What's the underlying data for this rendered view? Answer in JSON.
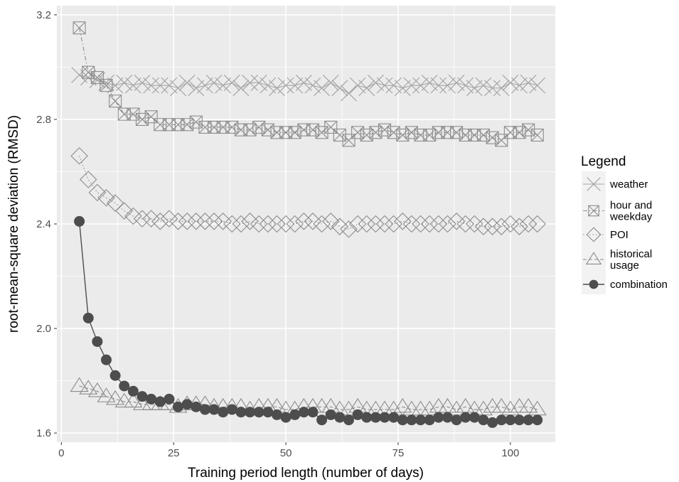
{
  "chart_data": {
    "type": "line",
    "xlabel": "Training period length (number of days)",
    "ylabel": "root-mean-square deviation (RMSD)",
    "xlim": [
      -1,
      110
    ],
    "ylim": [
      1.565,
      3.235
    ],
    "xticks": [
      0,
      25,
      50,
      75,
      100
    ],
    "yticks": [
      1.6,
      2.0,
      2.4,
      2.8,
      3.2
    ],
    "ytick_labels": [
      "1.6",
      "2.0",
      "2.4",
      "2.8",
      "3.2"
    ],
    "grid": true,
    "legend": {
      "title": "Legend",
      "placement": "right"
    },
    "x": [
      4,
      6,
      8,
      10,
      12,
      14,
      16,
      18,
      20,
      22,
      24,
      26,
      28,
      30,
      32,
      34,
      36,
      38,
      40,
      42,
      44,
      46,
      48,
      50,
      52,
      54,
      56,
      58,
      60,
      62,
      64,
      66,
      68,
      70,
      72,
      74,
      76,
      78,
      80,
      82,
      84,
      86,
      88,
      90,
      92,
      94,
      96,
      98,
      100,
      102,
      104,
      106
    ],
    "series": [
      {
        "name": "weather",
        "marker": "cross",
        "line": "solid",
        "color": "#a6a6a6",
        "values": [
          2.97,
          2.96,
          2.95,
          2.94,
          2.93,
          2.94,
          2.93,
          2.94,
          2.93,
          2.93,
          2.93,
          2.92,
          2.94,
          2.92,
          2.93,
          2.94,
          2.93,
          2.94,
          2.92,
          2.94,
          2.94,
          2.93,
          2.92,
          2.93,
          2.93,
          2.94,
          2.93,
          2.92,
          2.94,
          2.92,
          2.9,
          2.93,
          2.92,
          2.94,
          2.93,
          2.93,
          2.92,
          2.93,
          2.93,
          2.94,
          2.93,
          2.93,
          2.94,
          2.93,
          2.92,
          2.93,
          2.92,
          2.92,
          2.94,
          2.93,
          2.94,
          2.93
        ]
      },
      {
        "name": "hour and weekday",
        "marker": "boxed-cross",
        "line": "dash-dot",
        "color": "#8c8c8c",
        "values": [
          3.15,
          2.98,
          2.96,
          2.93,
          2.87,
          2.82,
          2.82,
          2.8,
          2.81,
          2.78,
          2.78,
          2.78,
          2.78,
          2.79,
          2.77,
          2.77,
          2.77,
          2.77,
          2.76,
          2.76,
          2.77,
          2.76,
          2.75,
          2.75,
          2.75,
          2.76,
          2.76,
          2.75,
          2.77,
          2.74,
          2.72,
          2.75,
          2.74,
          2.75,
          2.76,
          2.75,
          2.74,
          2.75,
          2.74,
          2.74,
          2.75,
          2.75,
          2.75,
          2.74,
          2.74,
          2.74,
          2.73,
          2.72,
          2.75,
          2.75,
          2.76,
          2.74
        ]
      },
      {
        "name": "POI",
        "marker": "diamond",
        "line": "dotted",
        "color": "#8c8c8c",
        "values": [
          2.66,
          2.57,
          2.52,
          2.5,
          2.48,
          2.45,
          2.43,
          2.42,
          2.42,
          2.41,
          2.42,
          2.41,
          2.41,
          2.41,
          2.41,
          2.41,
          2.41,
          2.4,
          2.4,
          2.41,
          2.4,
          2.4,
          2.4,
          2.4,
          2.4,
          2.41,
          2.41,
          2.4,
          2.41,
          2.39,
          2.38,
          2.4,
          2.4,
          2.4,
          2.4,
          2.4,
          2.41,
          2.4,
          2.4,
          2.4,
          2.4,
          2.4,
          2.41,
          2.4,
          2.4,
          2.39,
          2.39,
          2.39,
          2.4,
          2.39,
          2.4,
          2.4
        ]
      },
      {
        "name": "historical usage",
        "marker": "triangle",
        "line": "dashed",
        "color": "#8c8c8c",
        "values": [
          1.78,
          1.77,
          1.76,
          1.74,
          1.73,
          1.72,
          1.72,
          1.71,
          1.71,
          1.71,
          1.71,
          1.7,
          1.71,
          1.71,
          1.71,
          1.7,
          1.7,
          1.7,
          1.7,
          1.69,
          1.7,
          1.7,
          1.7,
          1.69,
          1.69,
          1.7,
          1.7,
          1.7,
          1.7,
          1.69,
          1.69,
          1.7,
          1.69,
          1.69,
          1.69,
          1.69,
          1.7,
          1.69,
          1.69,
          1.69,
          1.7,
          1.7,
          1.69,
          1.7,
          1.69,
          1.69,
          1.7,
          1.7,
          1.69,
          1.7,
          1.7,
          1.69
        ]
      },
      {
        "name": "combination",
        "marker": "circle",
        "line": "solid",
        "color": "#4d4d4d",
        "values": [
          2.41,
          2.04,
          1.95,
          1.88,
          1.82,
          1.78,
          1.76,
          1.74,
          1.73,
          1.72,
          1.73,
          1.7,
          1.71,
          1.7,
          1.69,
          1.69,
          1.68,
          1.69,
          1.68,
          1.68,
          1.68,
          1.68,
          1.67,
          1.66,
          1.67,
          1.68,
          1.68,
          1.65,
          1.67,
          1.66,
          1.65,
          1.67,
          1.66,
          1.66,
          1.66,
          1.66,
          1.65,
          1.65,
          1.65,
          1.65,
          1.66,
          1.66,
          1.65,
          1.66,
          1.66,
          1.65,
          1.64,
          1.65,
          1.65,
          1.65,
          1.65,
          1.65
        ]
      }
    ]
  },
  "legend_labels": [
    [
      "weather"
    ],
    [
      "hour and",
      "weekday"
    ],
    [
      "POI"
    ],
    [
      "historical",
      "usage"
    ],
    [
      "combination"
    ]
  ],
  "colors": {
    "panel_bg": "#ebebeb",
    "grid": "#ffffff",
    "tick_text": "#4d4d4d"
  }
}
